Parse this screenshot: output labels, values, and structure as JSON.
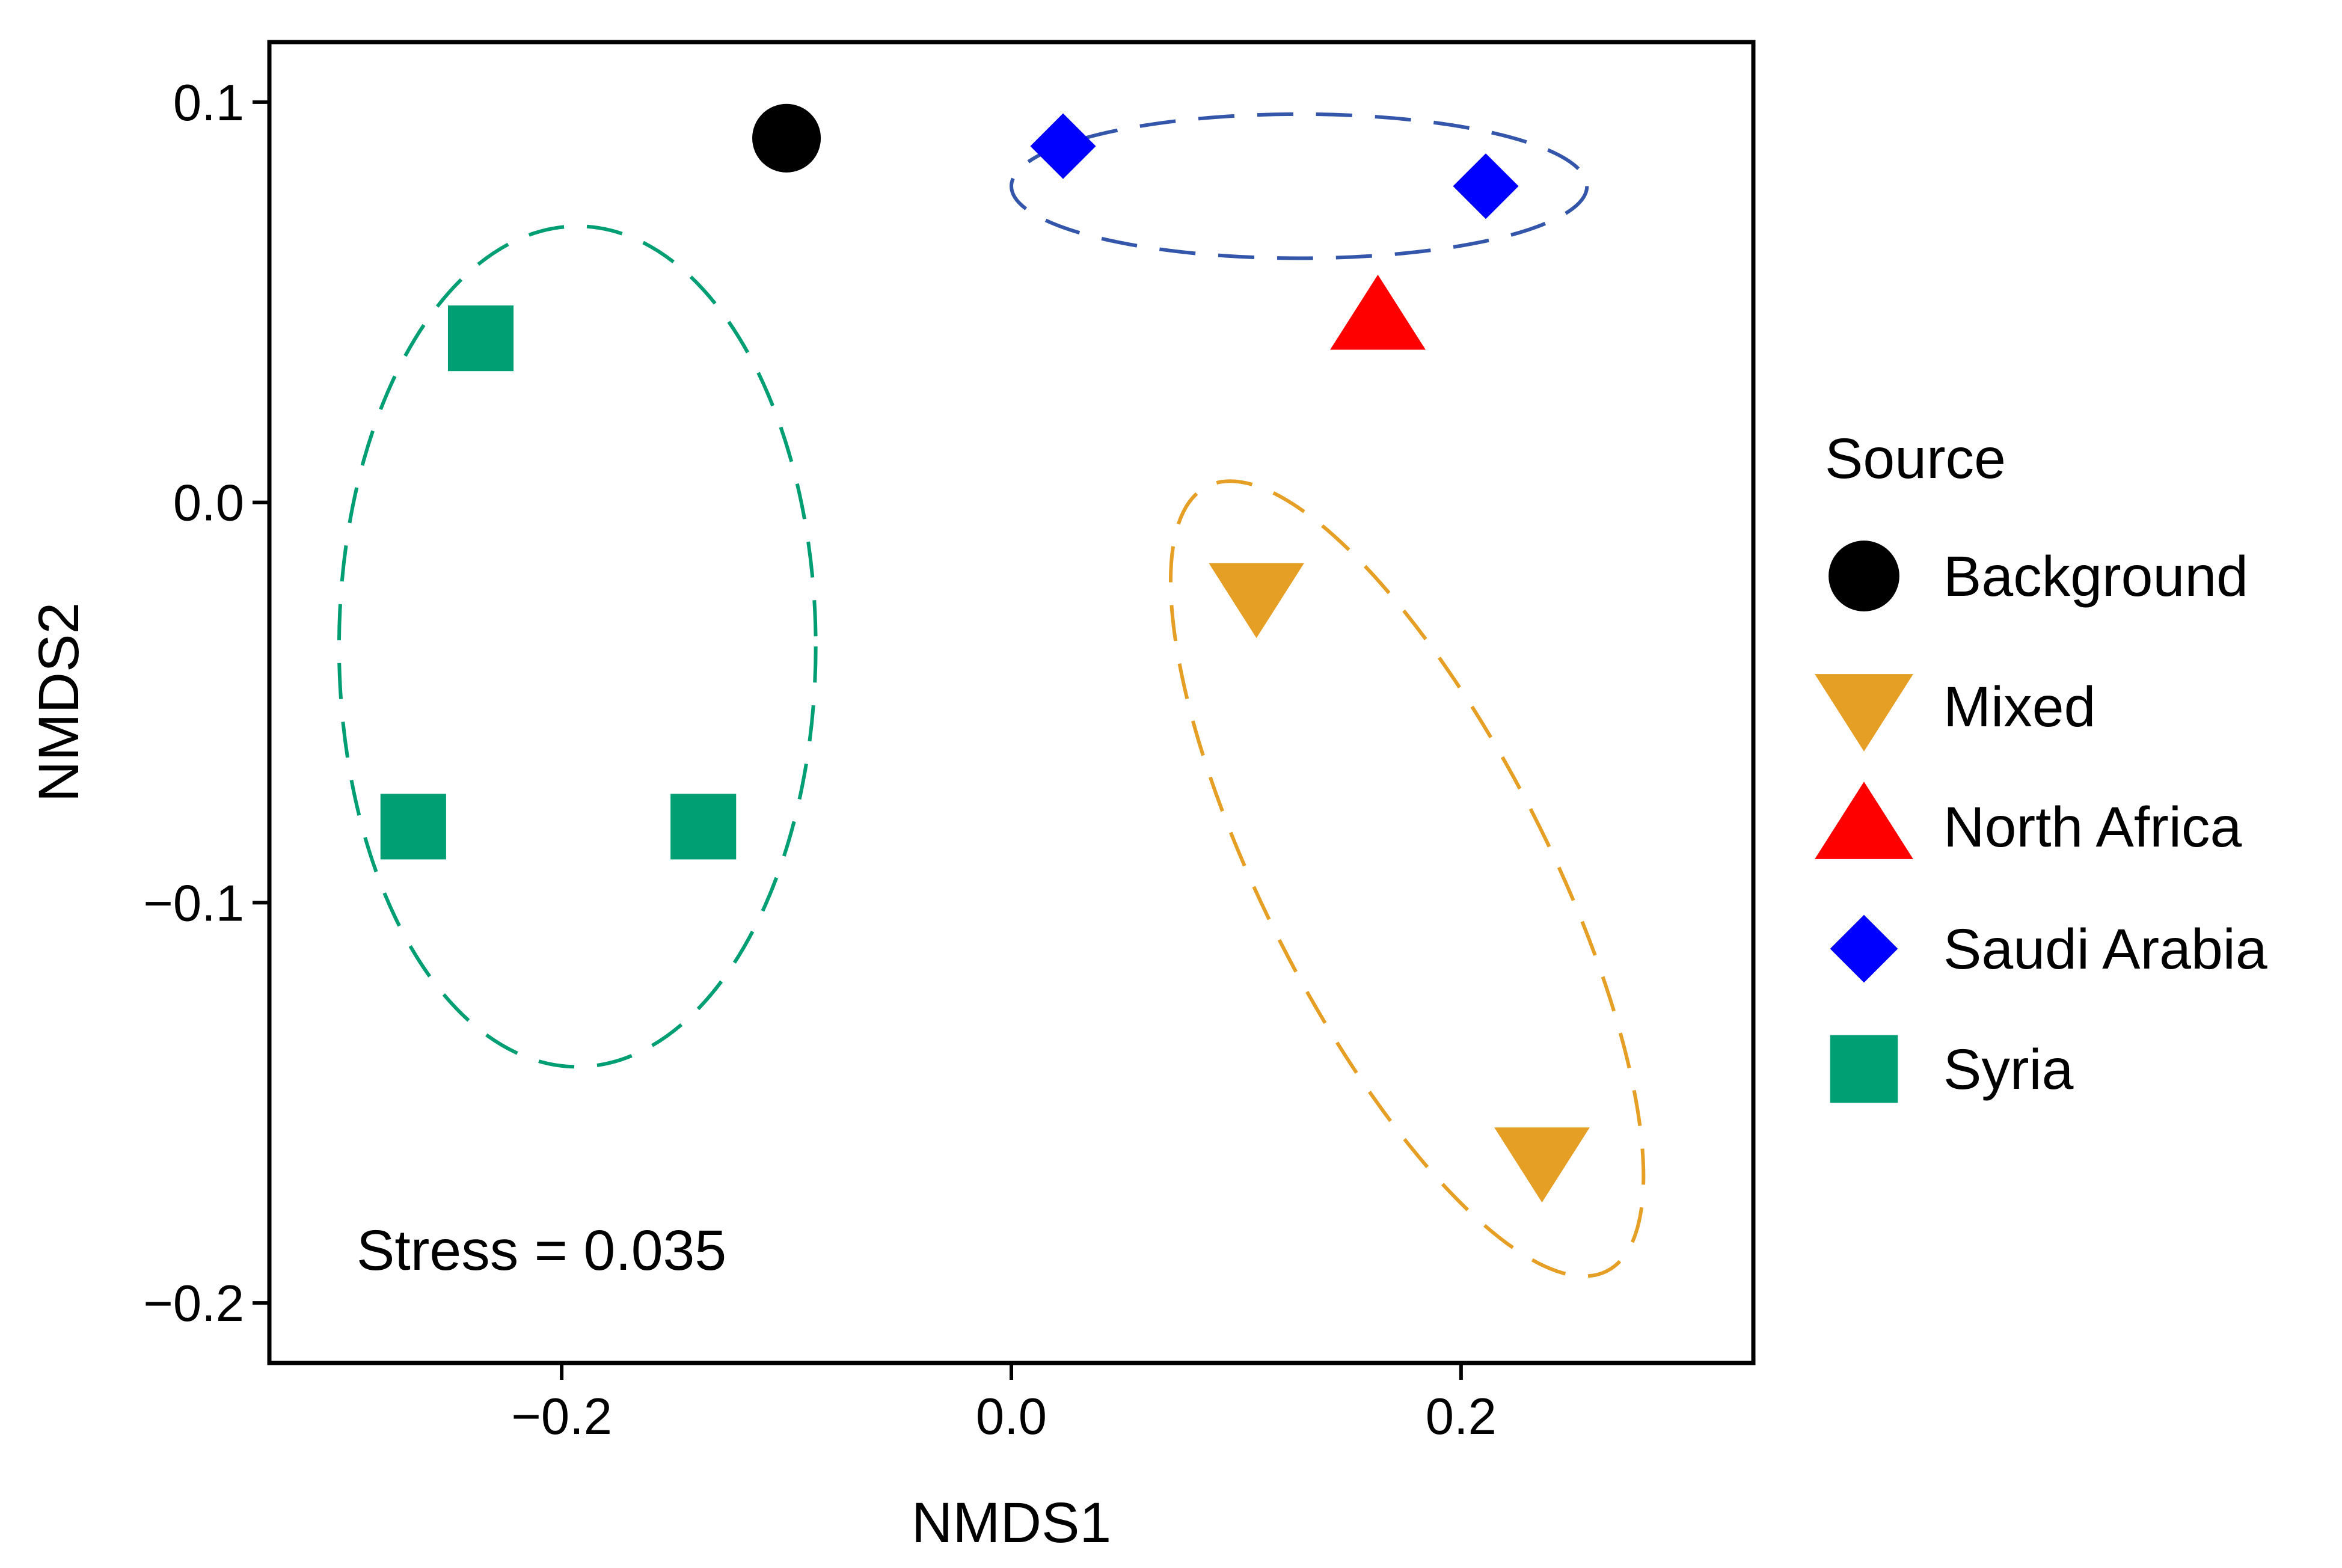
{
  "chart_data": {
    "type": "scatter",
    "xlabel": "NMDS1",
    "ylabel": "NMDS2",
    "xlim": [
      -0.33,
      0.33
    ],
    "ylim": [
      -0.215,
      0.115
    ],
    "x_ticks": [
      {
        "value": -0.2,
        "label": "−0.2"
      },
      {
        "value": 0.0,
        "label": "0.0"
      },
      {
        "value": 0.2,
        "label": "0.2"
      }
    ],
    "y_ticks": [
      {
        "value": 0.1,
        "label": "0.1"
      },
      {
        "value": 0.0,
        "label": "0.0"
      },
      {
        "value": -0.1,
        "label": "−0.1"
      },
      {
        "value": -0.2,
        "label": "−0.2"
      }
    ],
    "grid": false,
    "annotation": "Stress = 0.035",
    "legend": {
      "title": "Source",
      "position": "right",
      "entries": [
        {
          "label": "Background",
          "shape": "circle",
          "color": "#000000"
        },
        {
          "label": "Mixed",
          "shape": "triangle-down",
          "color": "#E69F25"
        },
        {
          "label": "North Africa",
          "shape": "triangle-up",
          "color": "#FF0000"
        },
        {
          "label": "Saudi Arabia",
          "shape": "diamond",
          "color": "#0000FF"
        },
        {
          "label": "Syria",
          "shape": "square",
          "color": "#009E73"
        }
      ]
    },
    "series": [
      {
        "name": "Background",
        "shape": "circle",
        "color": "#000000",
        "points": [
          {
            "x": -0.1,
            "y": 0.091
          }
        ]
      },
      {
        "name": "Mixed",
        "shape": "triangle-down",
        "color": "#E69F25",
        "points": [
          {
            "x": 0.109,
            "y": -0.023
          },
          {
            "x": 0.236,
            "y": -0.164
          }
        ]
      },
      {
        "name": "North Africa",
        "shape": "triangle-up",
        "color": "#FF0000",
        "points": [
          {
            "x": 0.163,
            "y": 0.046
          }
        ]
      },
      {
        "name": "Saudi Arabia",
        "shape": "diamond",
        "color": "#0000FF",
        "points": [
          {
            "x": 0.023,
            "y": 0.089
          },
          {
            "x": 0.211,
            "y": 0.079
          }
        ]
      },
      {
        "name": "Syria",
        "shape": "square",
        "color": "#009E73",
        "points": [
          {
            "x": -0.236,
            "y": 0.041
          },
          {
            "x": -0.266,
            "y": -0.081
          },
          {
            "x": -0.137,
            "y": -0.081
          }
        ]
      }
    ],
    "ellipses": [
      {
        "group": "Syria",
        "color": "#009E73",
        "cx": -0.193,
        "cy": -0.036,
        "rx": 0.106,
        "ry": 0.105
      },
      {
        "group": "Saudi Arabia",
        "color": "#3355AA",
        "cx": 0.128,
        "cy": 0.079,
        "rx": 0.128,
        "ry": 0.018
      },
      {
        "group": "Mixed",
        "color": "#E69F25",
        "cx": 0.176,
        "cy": -0.094,
        "rx": 0.063,
        "ry": 0.11
      }
    ]
  }
}
